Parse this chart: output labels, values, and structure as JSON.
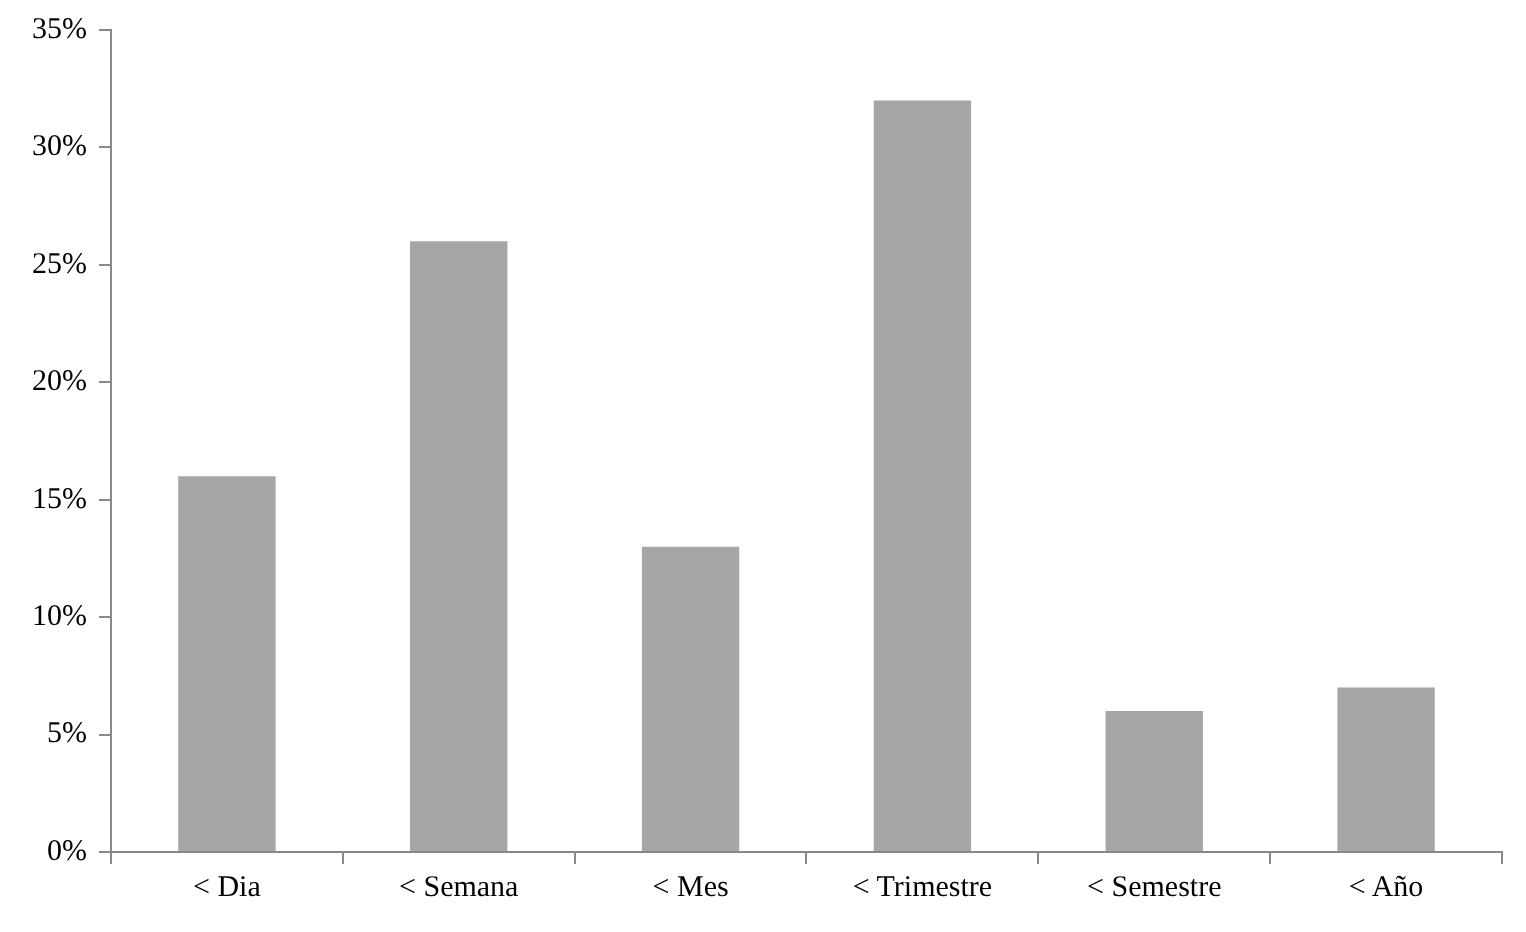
{
  "chart_data": {
    "type": "bar",
    "categories": [
      "< Dia",
      "< Semana",
      "< Mes",
      "< Trimestre",
      "< Semestre",
      "< Año"
    ],
    "values": [
      16,
      26,
      13,
      32,
      6,
      7
    ],
    "color": "#a6a6a6",
    "ylim": [
      0,
      35
    ],
    "yticks": [
      {
        "value": 0,
        "label": "0%"
      },
      {
        "value": 5,
        "label": "5%"
      },
      {
        "value": 10,
        "label": "10%"
      },
      {
        "value": 15,
        "label": "15%"
      },
      {
        "value": 20,
        "label": "20%"
      },
      {
        "value": 25,
        "label": "25%"
      },
      {
        "value": 30,
        "label": "30%"
      },
      {
        "value": 35,
        "label": "35%"
      }
    ],
    "grid": false,
    "legend": false
  }
}
